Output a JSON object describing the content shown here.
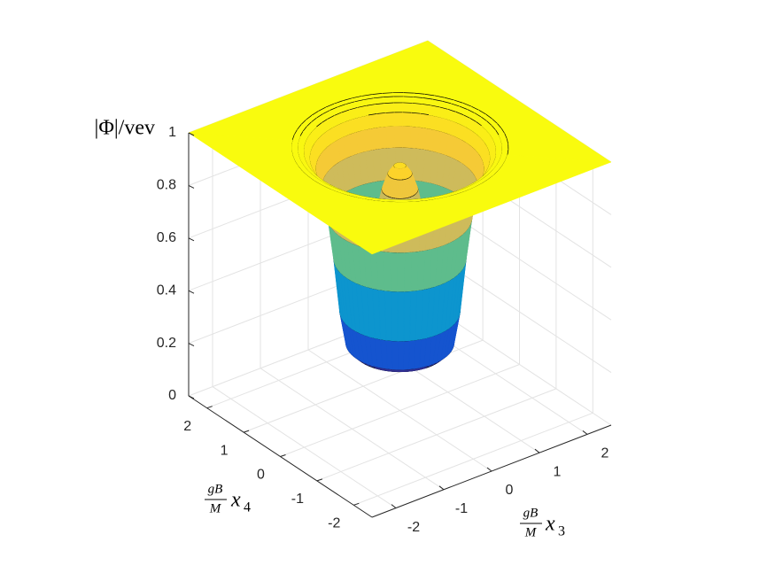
{
  "chart_data": {
    "type": "surface",
    "zlabel": "|Φ|/vev",
    "xlabel": {
      "numerator": "gB",
      "denominator": "M",
      "variable": "x",
      "subscript": "3"
    },
    "ylabel": {
      "numerator": "gB",
      "denominator": "M",
      "variable": "x",
      "subscript": "4"
    },
    "radius": [
      0,
      0.1,
      0.2,
      0.3,
      0.4,
      0.5,
      0.6,
      0.7,
      0.8,
      0.9,
      1.0,
      1.1,
      1.2,
      1.3,
      1.4,
      1.5,
      1.6,
      1.7,
      1.8
    ],
    "values": [
      0.94,
      0.93,
      0.9,
      0.84,
      0.74,
      0.6,
      0.45,
      0.32,
      0.24,
      0.26,
      0.38,
      0.58,
      0.74,
      0.85,
      0.92,
      0.96,
      0.985,
      0.997,
      1
    ],
    "xlim": [
      -2.5,
      2.5
    ],
    "ylim": [
      -2.5,
      2.5
    ],
    "zlim": [
      0,
      1
    ],
    "xticks": [
      -2,
      -1,
      0,
      1,
      2
    ],
    "yticks": [
      -2,
      -1,
      0,
      1,
      2
    ],
    "zticks": [
      0,
      0.2,
      0.4,
      0.6,
      0.8,
      1
    ],
    "grid": true,
    "colormap": "parula",
    "edge_color": "#000000"
  }
}
